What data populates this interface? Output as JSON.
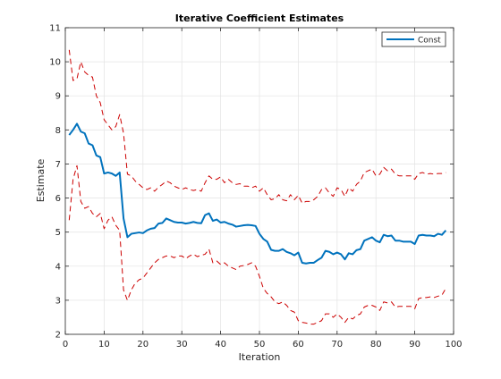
{
  "chart_data": {
    "type": "line",
    "title": "Iterative Coefficient Estimates",
    "xlabel": "Iteration",
    "ylabel": "Estimate",
    "xlim": [
      0,
      100
    ],
    "ylim": [
      2,
      11
    ],
    "xticks": [
      0,
      10,
      20,
      30,
      40,
      50,
      60,
      70,
      80,
      90,
      100
    ],
    "yticks": [
      2,
      3,
      4,
      5,
      6,
      7,
      8,
      9,
      10,
      11
    ],
    "grid": true,
    "legend": {
      "placement": "top-right",
      "entries": [
        "Const"
      ]
    },
    "series": [
      {
        "name": "Const",
        "color": "#0072BD",
        "style": "solid",
        "x": [
          1,
          2,
          3,
          4,
          5,
          6,
          7,
          8,
          9,
          10,
          11,
          12,
          13,
          14,
          15,
          16,
          17,
          18,
          19,
          20,
          21,
          22,
          23,
          24,
          25,
          26,
          27,
          28,
          29,
          30,
          31,
          32,
          33,
          34,
          35,
          36,
          37,
          38,
          39,
          40,
          41,
          42,
          43,
          44,
          45,
          46,
          47,
          48,
          49,
          50,
          51,
          52,
          53,
          54,
          55,
          56,
          57,
          58,
          59,
          60,
          61,
          62,
          63,
          64,
          65,
          66,
          67,
          68,
          69,
          70,
          71,
          72,
          73,
          74,
          75,
          76,
          77,
          78,
          79,
          80,
          81,
          82,
          83,
          84,
          85,
          86,
          87,
          88,
          89,
          90,
          91,
          92,
          93,
          94,
          95,
          96,
          97,
          98
        ],
        "y": [
          7.85,
          8.0,
          8.18,
          7.95,
          7.9,
          7.6,
          7.55,
          7.25,
          7.2,
          6.72,
          6.75,
          6.72,
          6.65,
          6.75,
          5.4,
          4.85,
          4.95,
          4.97,
          4.99,
          4.97,
          5.05,
          5.1,
          5.12,
          5.25,
          5.27,
          5.4,
          5.35,
          5.3,
          5.28,
          5.28,
          5.25,
          5.27,
          5.3,
          5.27,
          5.26,
          5.5,
          5.55,
          5.33,
          5.37,
          5.28,
          5.3,
          5.25,
          5.22,
          5.16,
          5.18,
          5.2,
          5.21,
          5.2,
          5.18,
          4.95,
          4.8,
          4.72,
          4.48,
          4.45,
          4.45,
          4.5,
          4.42,
          4.38,
          4.32,
          4.4,
          4.1,
          4.08,
          4.1,
          4.1,
          4.18,
          4.25,
          4.45,
          4.42,
          4.35,
          4.4,
          4.35,
          4.2,
          4.38,
          4.35,
          4.47,
          4.5,
          4.75,
          4.8,
          4.85,
          4.75,
          4.7,
          4.92,
          4.88,
          4.9,
          4.75,
          4.75,
          4.72,
          4.72,
          4.72,
          4.65,
          4.9,
          4.92,
          4.9,
          4.9,
          4.88,
          4.95,
          4.92,
          5.05
        ]
      },
      {
        "name": "",
        "color": "#CC0000",
        "style": "dashed",
        "x": [
          1,
          2,
          3,
          4,
          5,
          6,
          7,
          8,
          9,
          10,
          11,
          12,
          13,
          14,
          15,
          16,
          17,
          18,
          19,
          20,
          21,
          22,
          23,
          24,
          25,
          26,
          27,
          28,
          29,
          30,
          31,
          32,
          33,
          34,
          35,
          36,
          37,
          38,
          39,
          40,
          41,
          42,
          43,
          44,
          45,
          46,
          47,
          48,
          49,
          50,
          51,
          52,
          53,
          54,
          55,
          56,
          57,
          58,
          59,
          60,
          61,
          62,
          63,
          64,
          65,
          66,
          67,
          68,
          69,
          70,
          71,
          72,
          73,
          74,
          75,
          76,
          77,
          78,
          79,
          80,
          81,
          82,
          83,
          84,
          85,
          86,
          87,
          88,
          89,
          90,
          91,
          92,
          93,
          94,
          95,
          96,
          97,
          98
        ],
        "y": [
          10.35,
          9.45,
          9.5,
          10.0,
          9.7,
          9.6,
          9.55,
          9.0,
          8.8,
          8.3,
          8.15,
          8.0,
          8.1,
          8.45,
          7.9,
          6.7,
          6.65,
          6.5,
          6.4,
          6.3,
          6.25,
          6.3,
          6.2,
          6.32,
          6.4,
          6.5,
          6.45,
          6.35,
          6.3,
          6.25,
          6.3,
          6.25,
          6.22,
          6.25,
          6.2,
          6.45,
          6.65,
          6.55,
          6.55,
          6.62,
          6.45,
          6.55,
          6.45,
          6.4,
          6.42,
          6.35,
          6.35,
          6.3,
          6.35,
          6.2,
          6.3,
          6.1,
          5.95,
          5.98,
          6.1,
          5.95,
          5.92,
          6.1,
          5.95,
          6.08,
          5.85,
          5.9,
          5.9,
          5.95,
          6.05,
          6.25,
          6.3,
          6.15,
          6.05,
          6.3,
          6.25,
          6.05,
          6.3,
          6.2,
          6.4,
          6.5,
          6.75,
          6.8,
          6.85,
          6.65,
          6.7,
          6.9,
          6.8,
          6.85,
          6.7,
          6.65,
          6.65,
          6.65,
          6.65,
          6.55,
          6.72,
          6.75,
          6.7,
          6.72,
          6.7,
          6.72,
          6.72,
          6.75
        ]
      },
      {
        "name": "",
        "color": "#CC0000",
        "style": "dashed",
        "x": [
          1,
          2,
          3,
          4,
          5,
          6,
          7,
          8,
          9,
          10,
          11,
          12,
          13,
          14,
          15,
          16,
          17,
          18,
          19,
          20,
          21,
          22,
          23,
          24,
          25,
          26,
          27,
          28,
          29,
          30,
          31,
          32,
          33,
          34,
          35,
          36,
          37,
          38,
          39,
          40,
          41,
          42,
          43,
          44,
          45,
          46,
          47,
          48,
          49,
          50,
          51,
          52,
          53,
          54,
          55,
          56,
          57,
          58,
          59,
          60,
          61,
          62,
          63,
          64,
          65,
          66,
          67,
          68,
          69,
          70,
          71,
          72,
          73,
          74,
          75,
          76,
          77,
          78,
          79,
          80,
          81,
          82,
          83,
          84,
          85,
          86,
          87,
          88,
          89,
          90,
          91,
          92,
          93,
          94,
          95,
          96,
          97,
          98
        ],
        "y": [
          5.35,
          6.55,
          6.95,
          5.9,
          5.7,
          5.75,
          5.55,
          5.45,
          5.55,
          5.1,
          5.35,
          5.45,
          5.2,
          5.05,
          3.3,
          3.0,
          3.3,
          3.5,
          3.6,
          3.65,
          3.8,
          3.95,
          4.1,
          4.2,
          4.25,
          4.3,
          4.3,
          4.25,
          4.3,
          4.3,
          4.22,
          4.3,
          4.35,
          4.28,
          4.32,
          4.35,
          4.5,
          4.1,
          4.15,
          4.05,
          4.1,
          4.0,
          3.95,
          3.9,
          4.0,
          4.02,
          4.05,
          4.1,
          4.0,
          3.7,
          3.35,
          3.2,
          3.1,
          2.95,
          2.9,
          2.95,
          2.85,
          2.7,
          2.65,
          2.4,
          2.35,
          2.33,
          2.3,
          2.3,
          2.35,
          2.4,
          2.6,
          2.6,
          2.5,
          2.6,
          2.5,
          2.35,
          2.5,
          2.45,
          2.55,
          2.6,
          2.8,
          2.85,
          2.85,
          2.8,
          2.7,
          2.95,
          2.92,
          2.95,
          2.8,
          2.82,
          2.82,
          2.82,
          2.82,
          2.75,
          3.05,
          3.08,
          3.08,
          3.1,
          3.08,
          3.12,
          3.15,
          3.35
        ]
      }
    ]
  }
}
